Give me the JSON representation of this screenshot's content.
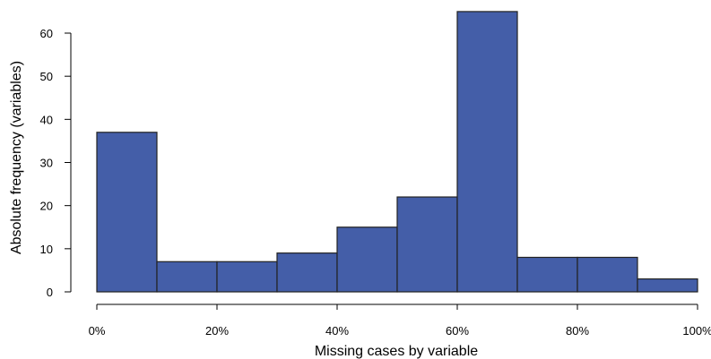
{
  "chart_data": {
    "type": "bar",
    "subtype": "histogram",
    "title": "",
    "xlabel": "Missing cases by variable",
    "ylabel": "Absolute frequency (variables)",
    "bins": [
      {
        "from": 0,
        "to": 10,
        "count": 37
      },
      {
        "from": 10,
        "to": 20,
        "count": 7
      },
      {
        "from": 20,
        "to": 30,
        "count": 7
      },
      {
        "from": 30,
        "to": 40,
        "count": 9
      },
      {
        "from": 40,
        "to": 50,
        "count": 15
      },
      {
        "from": 50,
        "to": 60,
        "count": 22
      },
      {
        "from": 60,
        "to": 70,
        "count": 65
      },
      {
        "from": 70,
        "to": 80,
        "count": 8
      },
      {
        "from": 80,
        "to": 90,
        "count": 8
      },
      {
        "from": 90,
        "to": 100,
        "count": 3
      }
    ],
    "xlim": [
      0,
      100
    ],
    "ylim": [
      0,
      65
    ],
    "x_ticks": [
      {
        "value": 0,
        "label": "0%"
      },
      {
        "value": 20,
        "label": "20%"
      },
      {
        "value": 40,
        "label": "40%"
      },
      {
        "value": 60,
        "label": "60%"
      },
      {
        "value": 80,
        "label": "80%"
      },
      {
        "value": 100,
        "label": "100%"
      }
    ],
    "y_ticks": [
      {
        "value": 0,
        "label": "0"
      },
      {
        "value": 10,
        "label": "10"
      },
      {
        "value": 20,
        "label": "20"
      },
      {
        "value": 30,
        "label": "30"
      },
      {
        "value": 40,
        "label": "40"
      },
      {
        "value": 50,
        "label": "50"
      },
      {
        "value": 60,
        "label": "60"
      }
    ],
    "grid": false,
    "legend": "none",
    "bar_color": "#445ea8",
    "edge_color": "#222222"
  }
}
